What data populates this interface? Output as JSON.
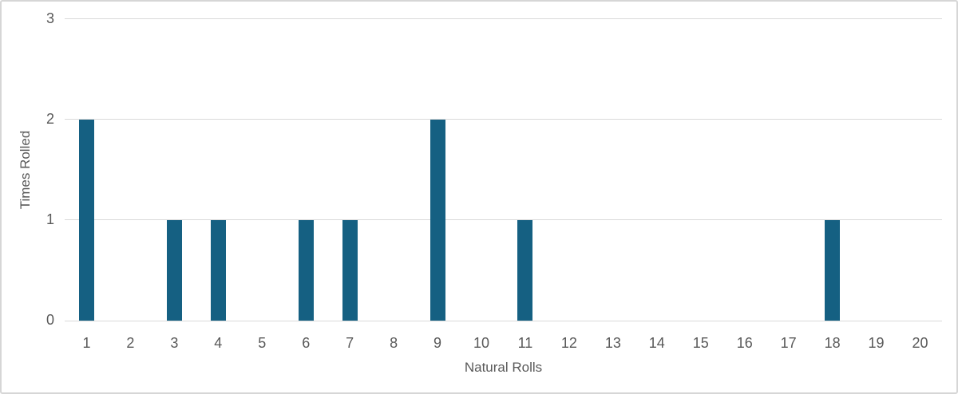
{
  "chart_data": {
    "type": "bar",
    "title": "",
    "xlabel": "Natural Rolls",
    "ylabel": "Times Rolled",
    "categories": [
      "1",
      "2",
      "3",
      "4",
      "5",
      "6",
      "7",
      "8",
      "9",
      "10",
      "11",
      "12",
      "13",
      "14",
      "15",
      "16",
      "17",
      "18",
      "19",
      "20"
    ],
    "values": [
      2,
      0,
      1,
      1,
      0,
      1,
      1,
      0,
      2,
      0,
      1,
      0,
      0,
      0,
      0,
      0,
      0,
      1,
      0,
      0
    ],
    "ylim": [
      0,
      3
    ],
    "y_ticks": [
      0,
      1,
      2,
      3
    ],
    "grid": "horizontal",
    "legend": "none",
    "bar_color": "#156082",
    "gridline_color": "#d9d9d9",
    "axis_line_color": "#d9d9d9",
    "label_color": "#595959"
  }
}
